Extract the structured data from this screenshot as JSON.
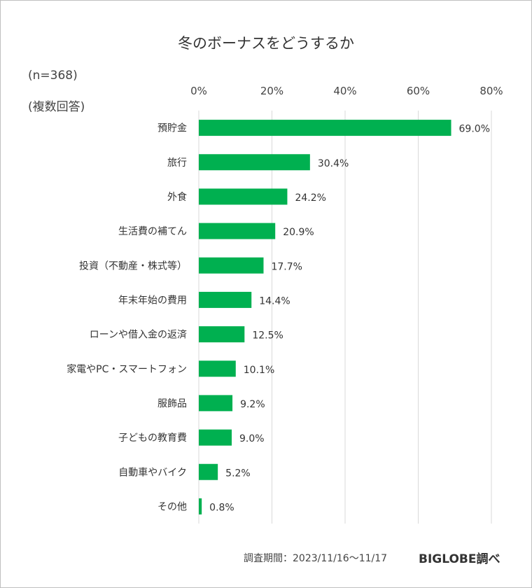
{
  "chart_data": {
    "type": "bar",
    "orientation": "horizontal",
    "title": "冬のボーナスをどうするか",
    "notes": [
      "(n=368)",
      "(複数回答)"
    ],
    "categories": [
      "預貯金",
      "旅行",
      "外食",
      "生活費の補てん",
      "投資（不動産・株式等）",
      "年末年始の費用",
      "ローンや借入金の返済",
      "家電やPC・スマートフォン",
      "服飾品",
      "子どもの教育費",
      "自動車やバイク",
      "その他"
    ],
    "values": [
      69.0,
      30.4,
      24.2,
      20.9,
      17.7,
      14.4,
      12.5,
      10.1,
      9.2,
      9.0,
      5.2,
      0.8
    ],
    "value_labels": [
      "69.0%",
      "30.4%",
      "24.2%",
      "20.9%",
      "17.7%",
      "14.4%",
      "12.5%",
      "10.1%",
      "9.2%",
      "9.0%",
      "5.2%",
      "0.8%"
    ],
    "xticks": [
      "0%",
      "20%",
      "40%",
      "60%",
      "80%"
    ],
    "xlim": [
      0,
      80
    ],
    "xaxis_position": "top",
    "grid": true,
    "bar_color": "#00b050",
    "grid_color": "#d9d9d9"
  },
  "footer": {
    "source": "調査期間：2023/11/16～11/17",
    "credit": "BIGLOBE調べ"
  }
}
